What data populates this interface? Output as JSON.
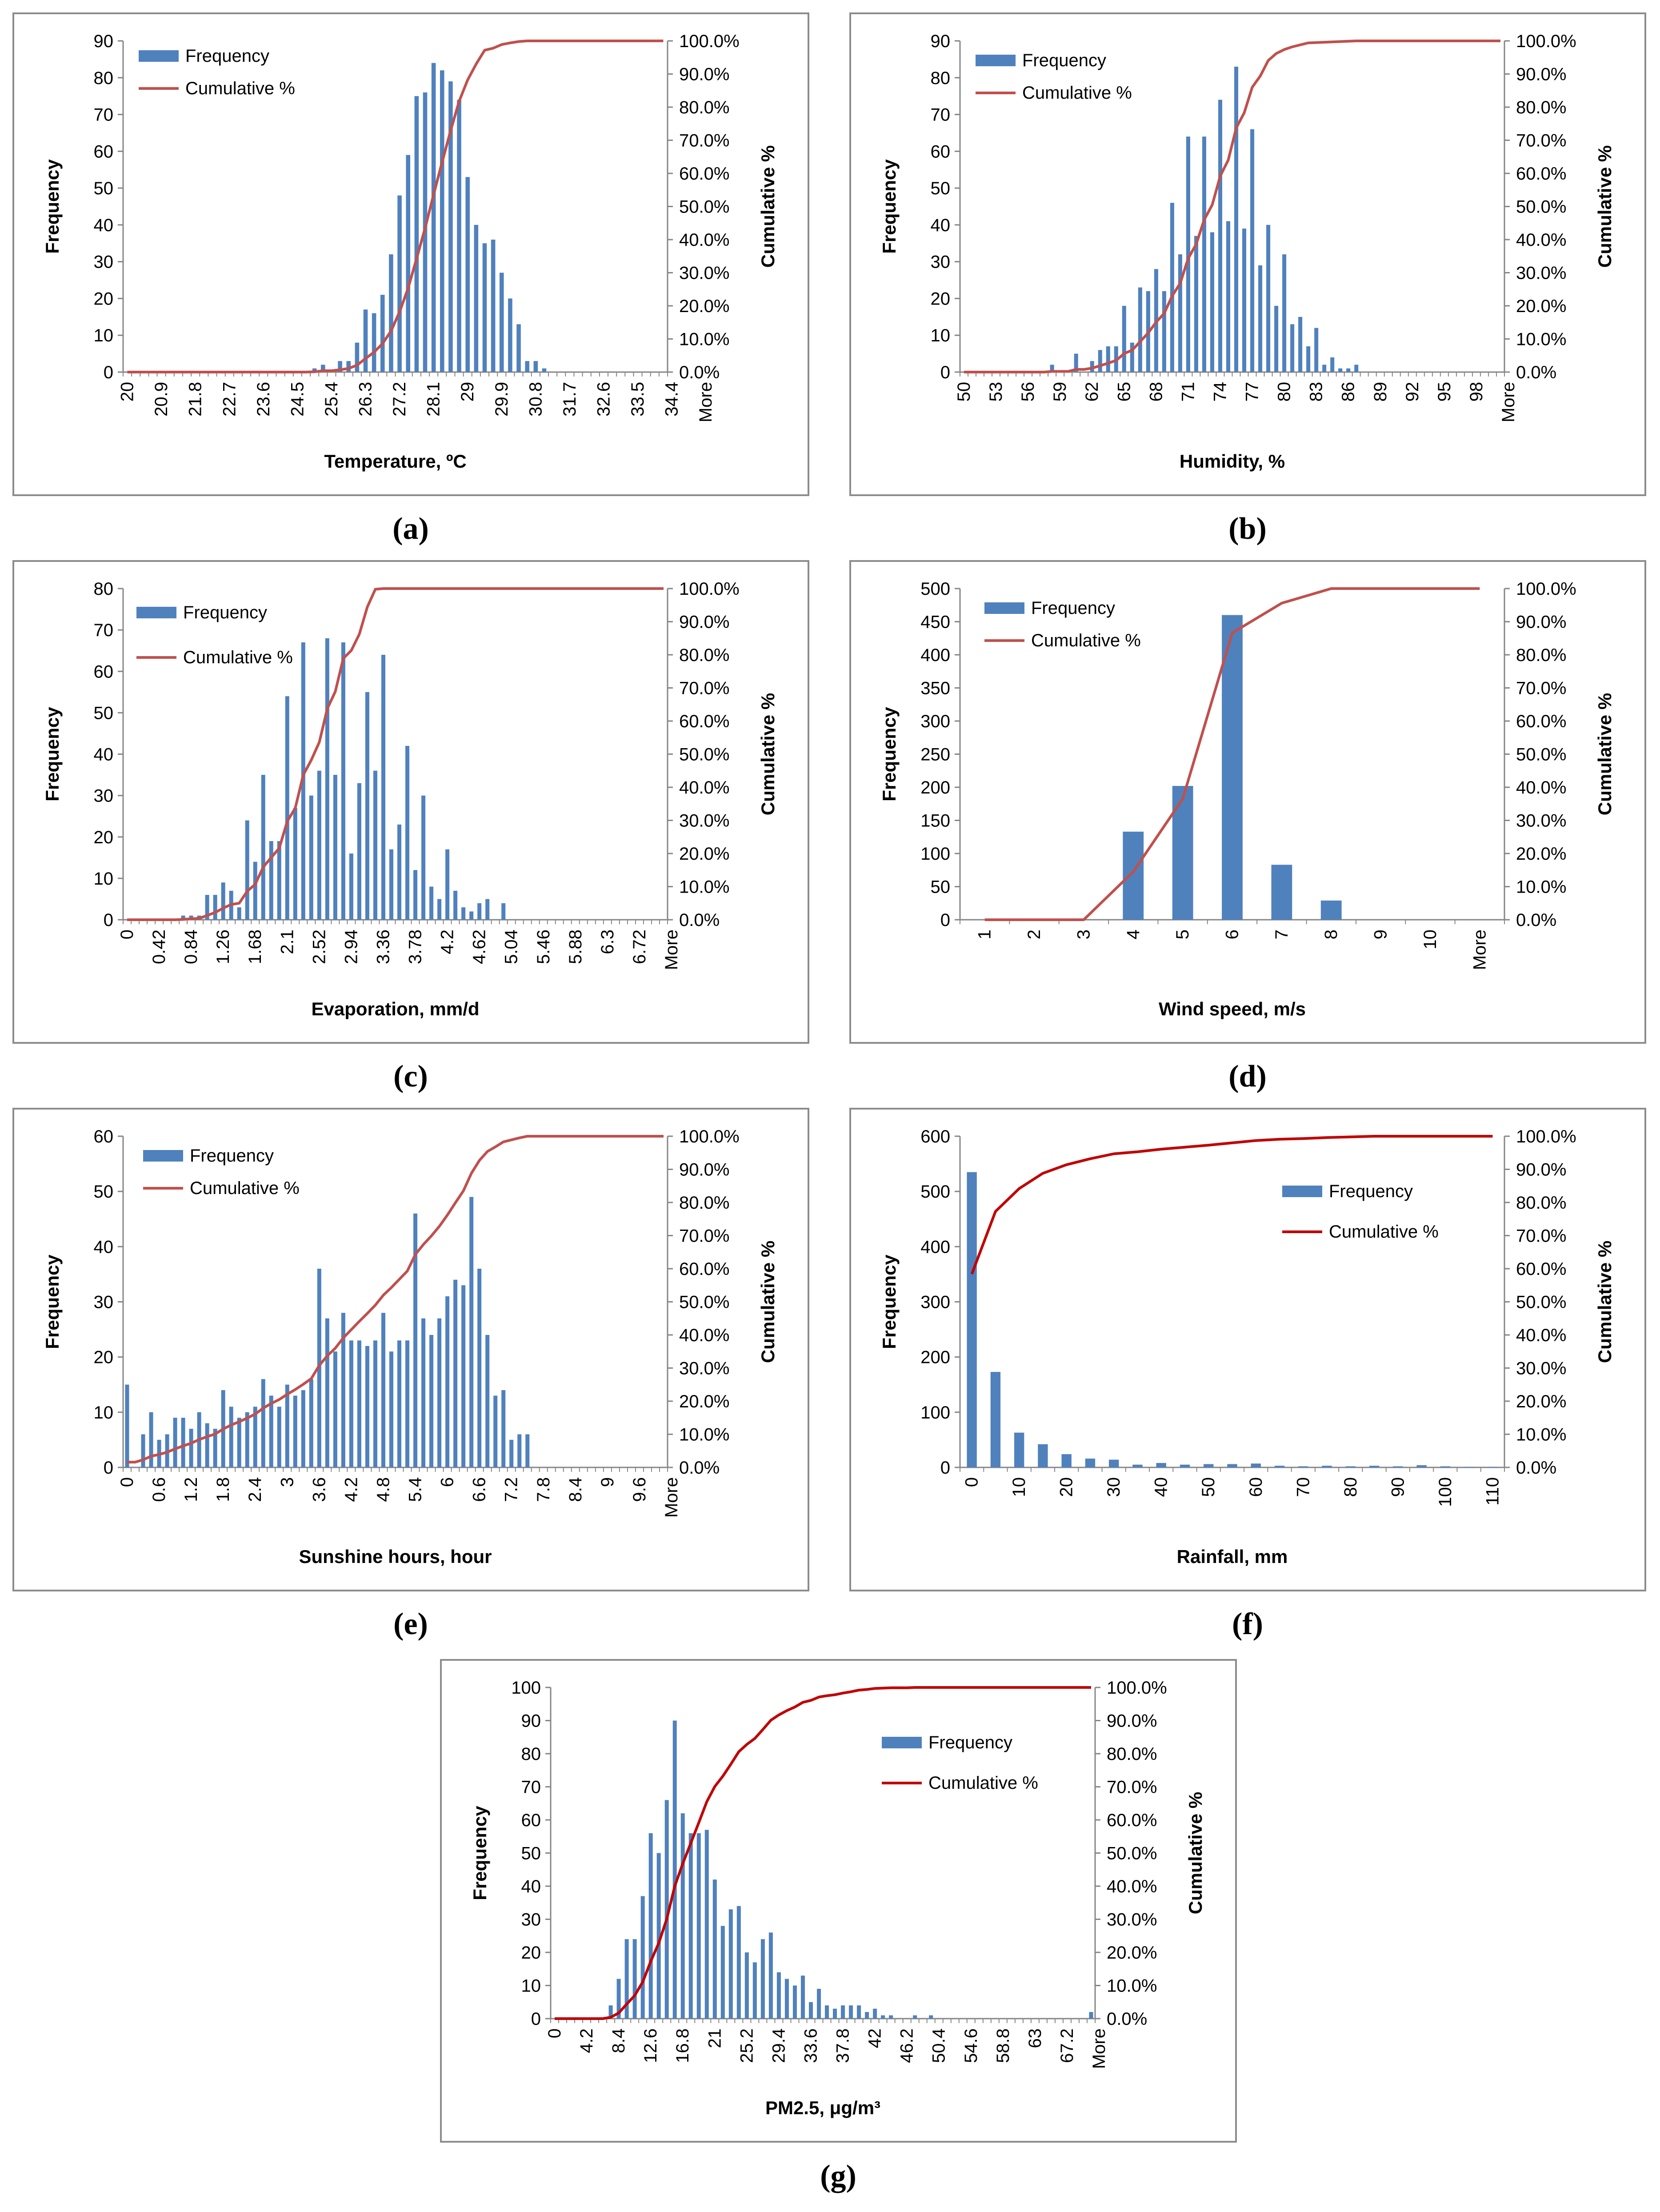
{
  "colors": {
    "bar": "#4f81bd",
    "line": "#c0504d",
    "line_dark": "#c00000",
    "axis": "#868686",
    "frame": "#8c8c8c"
  },
  "legend": {
    "bar_label": "Frequency",
    "line_label": "Cumulative %"
  },
  "captions": [
    "(a)",
    "(b)",
    "(c)",
    "(d)",
    "(e)",
    "(f)",
    "(g)"
  ],
  "chart_data": [
    {
      "id": "a",
      "type": "bar+line",
      "title": "",
      "xlabel": "Temperature, ºC",
      "ylabel": "Frequency",
      "y2label": "Cumulative %",
      "ylim": [
        0,
        90
      ],
      "yticks": [
        0,
        10,
        20,
        30,
        40,
        50,
        60,
        70,
        80,
        90
      ],
      "y2ticks": [
        "0.0%",
        "10.0%",
        "20.0%",
        "30.0%",
        "40.0%",
        "50.0%",
        "60.0%",
        "70.0%",
        "80.0%",
        "90.0%",
        "100.0%"
      ],
      "x_tick_labels": [
        "20",
        "20.9",
        "21.8",
        "22.7",
        "23.6",
        "24.5",
        "25.4",
        "26.3",
        "27.2",
        "28.1",
        "29",
        "29.9",
        "30.8",
        "31.7",
        "32.6",
        "33.5",
        "34.4",
        "More"
      ],
      "bins": 64,
      "tick_every": 4,
      "series": [
        {
          "name": "Frequency",
          "values": [
            0,
            0,
            0,
            0,
            0,
            0,
            0,
            0,
            0,
            0,
            0,
            0,
            0,
            0,
            0,
            0,
            0,
            0,
            0,
            0,
            0,
            0,
            1,
            2,
            0,
            3,
            3,
            8,
            17,
            16,
            21,
            32,
            48,
            59,
            75,
            76,
            84,
            82,
            79,
            74,
            53,
            40,
            35,
            36,
            27,
            20,
            13,
            3,
            3,
            1,
            0,
            0,
            0,
            0,
            0,
            0,
            0,
            0,
            0,
            0,
            0,
            0,
            0,
            0
          ]
        },
        {
          "name": "Cumulative %",
          "values": [
            0,
            0,
            0,
            0,
            0,
            0,
            0,
            0,
            0,
            0,
            0,
            0,
            0,
            0,
            0,
            0,
            0,
            0,
            0,
            0,
            0,
            0,
            0.1,
            0.4,
            0.4,
            0.7,
            1.1,
            2.1,
            4.1,
            6.0,
            8.6,
            12.4,
            18.2,
            25.3,
            34.3,
            43.5,
            53.6,
            63.4,
            72.9,
            81.8,
            88.2,
            93.0,
            97.2,
            97.8,
            98.9,
            99.4,
            99.8,
            100,
            100,
            100,
            100,
            100,
            100,
            100,
            100,
            100,
            100,
            100,
            100,
            100,
            100,
            100,
            100,
            100
          ]
        }
      ]
    },
    {
      "id": "b",
      "type": "bar+line",
      "title": "",
      "xlabel": "Humidity, %",
      "ylabel": "Frequency",
      "y2label": "Cumulative %",
      "ylim": [
        0,
        90
      ],
      "yticks": [
        0,
        10,
        20,
        30,
        40,
        50,
        60,
        70,
        80,
        90
      ],
      "y2ticks": [
        "0.0%",
        "10.0%",
        "20.0%",
        "30.0%",
        "40.0%",
        "50.0%",
        "60.0%",
        "70.0%",
        "80.0%",
        "90.0%",
        "100.0%"
      ],
      "x_tick_labels": [
        "50",
        "53",
        "56",
        "59",
        "62",
        "65",
        "68",
        "71",
        "74",
        "77",
        "80",
        "83",
        "86",
        "89",
        "92",
        "95",
        "98",
        "More"
      ],
      "bins": 68,
      "tick_every": 4,
      "series": [
        {
          "name": "Frequency",
          "values": [
            0,
            0,
            0,
            0,
            0,
            0,
            0,
            0,
            0,
            0,
            0,
            2,
            0,
            0,
            5,
            0,
            3,
            6,
            7,
            7,
            18,
            8,
            23,
            22,
            28,
            22,
            46,
            32,
            64,
            37,
            64,
            38,
            74,
            41,
            83,
            39,
            66,
            29,
            40,
            18,
            32,
            13,
            15,
            7,
            12,
            2,
            4,
            1,
            1,
            2,
            0,
            0,
            0,
            0,
            0,
            0,
            0,
            0,
            0,
            0,
            0,
            0,
            0,
            0,
            0,
            0,
            0,
            0
          ]
        },
        {
          "name": "Cumulative %",
          "values": [
            0,
            0,
            0,
            0,
            0,
            0,
            0,
            0,
            0,
            0,
            0,
            0.2,
            0.2,
            0.2,
            0.8,
            0.8,
            1.2,
            1.9,
            2.7,
            3.5,
            5.6,
            6.6,
            9.2,
            11.8,
            15.1,
            17.7,
            23.0,
            26.8,
            34.3,
            38.6,
            46.0,
            50.5,
            59.2,
            64.0,
            73.7,
            78.3,
            86.0,
            89.4,
            94.1,
            96.2,
            97.4,
            98.2,
            98.8,
            99.4,
            99.5,
            99.6,
            99.7,
            99.8,
            99.9,
            100,
            100,
            100,
            100,
            100,
            100,
            100,
            100,
            100,
            100,
            100,
            100,
            100,
            100,
            100,
            100,
            100,
            100,
            100
          ]
        }
      ]
    },
    {
      "id": "c",
      "type": "bar+line",
      "title": "",
      "xlabel": "Evaporation, mm/d",
      "ylabel": "Frequency",
      "y2label": "Cumulative %",
      "ylim": [
        0,
        80
      ],
      "yticks": [
        0,
        10,
        20,
        30,
        40,
        50,
        60,
        70,
        80
      ],
      "y2ticks": [
        "0.0%",
        "10.0%",
        "20.0%",
        "30.0%",
        "40.0%",
        "50.0%",
        "60.0%",
        "70.0%",
        "80.0%",
        "90.0%",
        "100.0%"
      ],
      "x_tick_labels": [
        "0",
        "0.42",
        "0.84",
        "1.26",
        "1.68",
        "2.1",
        "2.52",
        "2.94",
        "3.36",
        "3.78",
        "4.2",
        "4.62",
        "5.04",
        "5.46",
        "5.88",
        "6.3",
        "6.72",
        "More"
      ],
      "bins": 68,
      "tick_every": 4,
      "series": [
        {
          "name": "Frequency",
          "values": [
            0,
            0,
            0,
            0,
            0,
            0,
            0,
            1,
            1,
            1,
            6,
            6,
            9,
            7,
            3,
            24,
            14,
            35,
            19,
            19,
            54,
            27,
            67,
            30,
            36,
            68,
            35,
            67,
            16,
            33,
            55,
            36,
            64,
            17,
            23,
            42,
            12,
            30,
            8,
            5,
            17,
            7,
            3,
            2,
            4,
            5,
            0,
            4,
            0,
            0,
            0,
            0,
            0,
            0,
            0,
            0,
            0,
            0,
            0,
            0,
            0,
            0,
            0,
            0,
            0,
            0,
            0,
            0
          ]
        },
        {
          "name": "Cumulative %",
          "values": [
            0,
            0,
            0,
            0,
            0,
            0,
            0,
            0.1,
            0.3,
            0.4,
            1.3,
            2.2,
            3.5,
            4.6,
            5.0,
            8.6,
            10.7,
            15.9,
            18.8,
            21.6,
            29.7,
            33.7,
            43.7,
            48.2,
            53.6,
            63.7,
            68.9,
            78.9,
            81.3,
            86.2,
            94.4,
            99.8,
            100,
            100,
            100,
            100,
            100,
            100,
            100,
            100,
            100,
            100,
            100,
            100,
            100,
            100,
            100,
            100,
            100,
            100,
            100,
            100,
            100,
            100,
            100,
            100,
            100,
            100,
            100,
            100,
            100,
            100,
            100,
            100,
            100,
            100,
            100,
            100
          ]
        }
      ]
    },
    {
      "id": "d",
      "type": "bar+line",
      "title": "",
      "xlabel": "Wind speed, m/s",
      "ylabel": "Frequency",
      "y2label": "Cumulative %",
      "ylim": [
        0,
        500
      ],
      "yticks": [
        0,
        50,
        100,
        150,
        200,
        250,
        300,
        350,
        400,
        450,
        500
      ],
      "y2ticks": [
        "0.0%",
        "10.0%",
        "20.0%",
        "30.0%",
        "40.0%",
        "50.0%",
        "60.0%",
        "70.0%",
        "80.0%",
        "90.0%",
        "100.0%"
      ],
      "x_tick_labels": [
        "1",
        "2",
        "3",
        "4",
        "5",
        "6",
        "7",
        "8",
        "9",
        "10",
        "More"
      ],
      "bins": 11,
      "tick_every": 1,
      "series": [
        {
          "name": "Frequency",
          "values": [
            0,
            0,
            0,
            133,
            202,
            460,
            83,
            29,
            0,
            0,
            0
          ]
        },
        {
          "name": "Cumulative %",
          "values": [
            0,
            0,
            0,
            14.5,
            36.5,
            86.6,
            95.6,
            100,
            100,
            100,
            100
          ]
        }
      ]
    },
    {
      "id": "e",
      "type": "bar+line",
      "title": "",
      "xlabel": "Sunshine hours, hour",
      "ylabel": "Frequency",
      "y2label": "Cumulative %",
      "ylim": [
        0,
        60
      ],
      "yticks": [
        0,
        10,
        20,
        30,
        40,
        50,
        60
      ],
      "y2ticks": [
        "0.0%",
        "10.0%",
        "20.0%",
        "30.0%",
        "40.0%",
        "50.0%",
        "60.0%",
        "70.0%",
        "80.0%",
        "90.0%",
        "100.0%"
      ],
      "x_tick_labels": [
        "0",
        "0.6",
        "1.2",
        "1.8",
        "2.4",
        "3",
        "3.6",
        "4.2",
        "4.8",
        "5.4",
        "6",
        "6.6",
        "7.2",
        "7.8",
        "8.4",
        "9",
        "9.6",
        "More"
      ],
      "bins": 68,
      "tick_every": 4,
      "series": [
        {
          "name": "Frequency",
          "values": [
            15,
            0,
            6,
            10,
            5,
            6,
            9,
            9,
            7,
            10,
            8,
            7,
            14,
            11,
            9,
            10,
            11,
            16,
            13,
            11,
            15,
            13,
            14,
            16,
            36,
            27,
            21,
            28,
            23,
            23,
            22,
            23,
            28,
            21,
            23,
            23,
            46,
            27,
            24,
            27,
            31,
            34,
            33,
            49,
            36,
            24,
            13,
            14,
            5,
            6,
            6,
            0,
            0,
            0,
            0,
            0,
            0,
            0,
            0,
            0,
            0,
            0,
            0,
            0,
            0,
            0,
            0,
            0
          ]
        },
        {
          "name": "Cumulative %",
          "values": [
            1.6,
            1.6,
            2.3,
            3.4,
            3.9,
            4.6,
            5.6,
            6.5,
            7.3,
            8.4,
            9.3,
            10.1,
            11.6,
            12.8,
            13.8,
            14.9,
            16.1,
            17.9,
            19.3,
            20.5,
            22.1,
            23.5,
            25.1,
            26.8,
            30.8,
            33.7,
            36.0,
            39.1,
            41.6,
            44.1,
            46.5,
            49.0,
            52.0,
            54.3,
            56.8,
            59.3,
            64.3,
            67.3,
            69.9,
            72.8,
            76.2,
            79.9,
            83.5,
            88.8,
            92.7,
            95.4,
            96.8,
            98.3,
            98.9,
            99.5,
            100,
            100,
            100,
            100,
            100,
            100,
            100,
            100,
            100,
            100,
            100,
            100,
            100,
            100,
            100,
            100,
            100,
            100
          ]
        }
      ]
    },
    {
      "id": "f",
      "type": "bar+line",
      "title": "",
      "xlabel": "Rainfall, mm",
      "ylabel": "Frequency",
      "y2label": "Cumulative %",
      "ylim": [
        0,
        600
      ],
      "yticks": [
        0,
        100,
        200,
        300,
        400,
        500,
        600
      ],
      "y2ticks": [
        "0.0%",
        "10.0%",
        "20.0%",
        "30.0%",
        "40.0%",
        "50.0%",
        "60.0%",
        "70.0%",
        "80.0%",
        "90.0%",
        "100.0%"
      ],
      "x_tick_labels": [
        "0",
        "10",
        "20",
        "30",
        "40",
        "50",
        "60",
        "70",
        "80",
        "90",
        "100",
        "110"
      ],
      "bins": 23,
      "tick_every": 2,
      "series": [
        {
          "name": "Frequency",
          "values": [
            535,
            173,
            63,
            42,
            24,
            16,
            14,
            5,
            8,
            5,
            6,
            6,
            7,
            3,
            2,
            3,
            2,
            3,
            2,
            4,
            2,
            1,
            1
          ]
        },
        {
          "name": "Cumulative %",
          "values": [
            58.4,
            77.3,
            84.2,
            88.8,
            91.4,
            93.2,
            94.7,
            95.3,
            96.1,
            96.7,
            97.3,
            98.0,
            98.7,
            99.1,
            99.3,
            99.6,
            99.8,
            100,
            100,
            100,
            100,
            100,
            100
          ]
        }
      ]
    },
    {
      "id": "g",
      "type": "bar+line",
      "title": "",
      "xlabel": "PM2.5, μg/m³",
      "ylabel": "Frequency",
      "y2label": "Cumulative %",
      "ylim": [
        0,
        100
      ],
      "yticks": [
        0,
        10,
        20,
        30,
        40,
        50,
        60,
        70,
        80,
        90,
        100
      ],
      "y2ticks": [
        "0.0%",
        "10.0%",
        "20.0%",
        "30.0%",
        "40.0%",
        "50.0%",
        "60.0%",
        "70.0%",
        "80.0%",
        "90.0%",
        "100.0%"
      ],
      "x_tick_labels": [
        "0",
        "4.2",
        "8.4",
        "12.6",
        "16.8",
        "21",
        "25.2",
        "29.4",
        "33.6",
        "37.8",
        "42",
        "46.2",
        "50.4",
        "54.6",
        "58.8",
        "63",
        "67.2",
        "More"
      ],
      "bins": 68,
      "tick_every": 4,
      "series": [
        {
          "name": "Frequency",
          "values": [
            0,
            0,
            0,
            0,
            0,
            0,
            0,
            4,
            12,
            24,
            24,
            37,
            56,
            50,
            66,
            90,
            62,
            56,
            56,
            57,
            42,
            28,
            33,
            34,
            20,
            17,
            24,
            26,
            14,
            12,
            10,
            13,
            5,
            9,
            4,
            3,
            4,
            4,
            4,
            2,
            3,
            1,
            1,
            0,
            0,
            1,
            0,
            1,
            0,
            0,
            0,
            0,
            0,
            0,
            0,
            0,
            0,
            0,
            0,
            0,
            0,
            0,
            0,
            0,
            0,
            0,
            0,
            2
          ]
        },
        {
          "name": "Cumulative %",
          "values": [
            0,
            0,
            0,
            0,
            0,
            0,
            0,
            0.4,
            1.7,
            4.4,
            7.0,
            11.1,
            17.3,
            22.8,
            30.1,
            40.0,
            46.8,
            53.0,
            59.2,
            65.5,
            70.1,
            73.2,
            76.8,
            80.6,
            82.8,
            84.6,
            87.3,
            90.1,
            91.7,
            93.0,
            94.1,
            95.5,
            96.1,
            97.1,
            97.5,
            97.8,
            98.3,
            98.7,
            99.2,
            99.4,
            99.7,
            99.8,
            99.9,
            99.9,
            99.9,
            100,
            100,
            100,
            100,
            100,
            100,
            100,
            100,
            100,
            100,
            100,
            100,
            100,
            100,
            100,
            100,
            100,
            100,
            100,
            100,
            100,
            100,
            100
          ]
        }
      ]
    }
  ]
}
